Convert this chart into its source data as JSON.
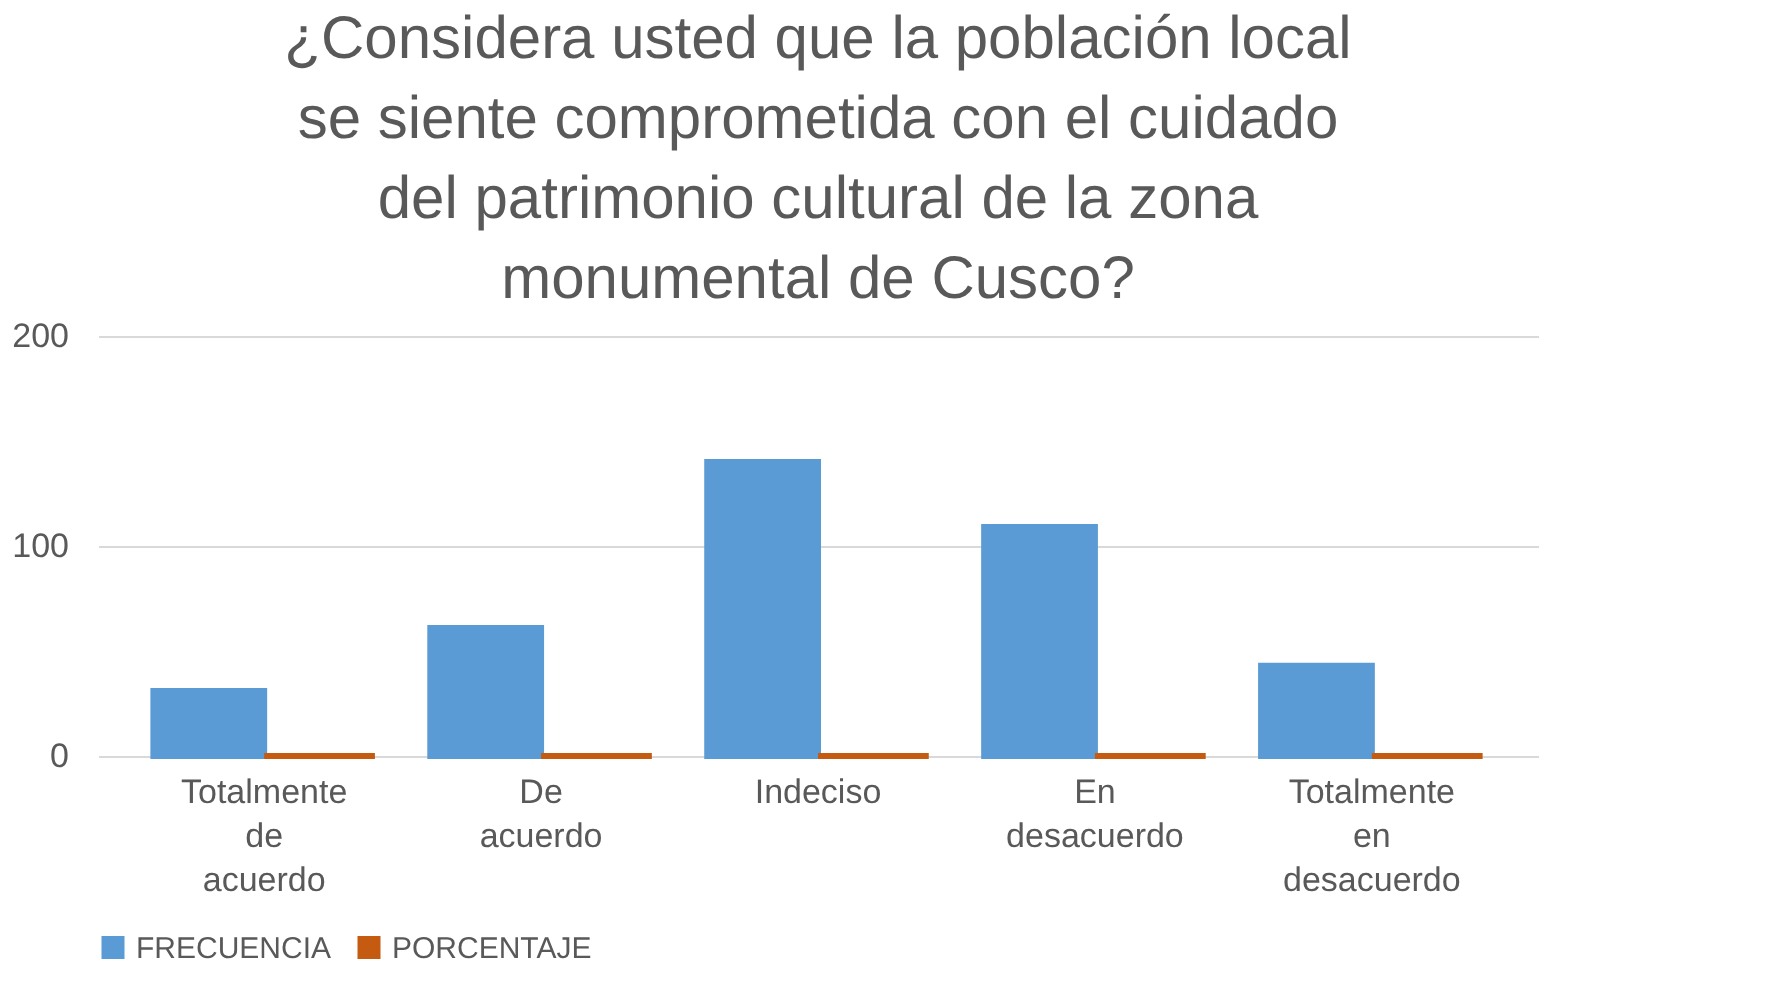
{
  "chart_data": {
    "type": "bar",
    "title": "¿Considera usted que la población local se siente comprometida con el cuidado del patrimonio cultural de la zona monumental de Cusco?",
    "categories": [
      "Totalmente de acuerdo",
      "De acuerdo",
      "Indeciso",
      "En desacuerdo",
      "Totalmente en desacuerdo"
    ],
    "series": [
      {
        "name": "FRECUENCIA",
        "color": "#5b9bd5",
        "values": [
          31,
          61,
          140,
          109,
          43
        ]
      },
      {
        "name": "PORCENTAJE",
        "color": "#c55a11",
        "values": [
          0,
          0,
          0,
          0,
          0
        ]
      }
    ],
    "ylim": [
      0,
      200
    ],
    "yticks": [
      0,
      100,
      200
    ],
    "grid": "y",
    "legend": "bottom"
  }
}
